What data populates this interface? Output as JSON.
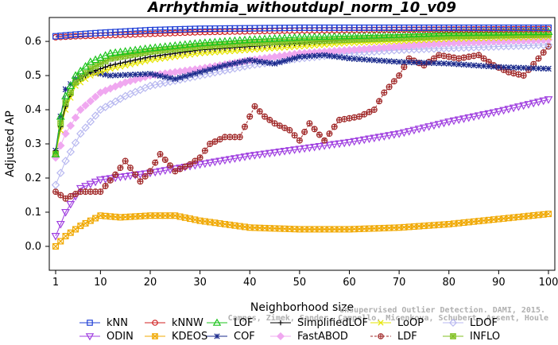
{
  "chart_data": {
    "type": "line",
    "title": "Arrhythmia_withoutdupl_norm_10_v09",
    "xlabel": "Neighborhood size",
    "ylabel": "Adjusted AP",
    "xlim": [
      1,
      100
    ],
    "ylim": [
      -0.07,
      0.67
    ],
    "xticks": [
      1,
      10,
      20,
      30,
      40,
      50,
      60,
      70,
      80,
      90,
      100
    ],
    "yticks": [
      0.0,
      0.1,
      0.2,
      0.3,
      0.4,
      0.5,
      0.6
    ],
    "ytick_labels": [
      "0.0",
      "0.1",
      "0.2",
      "0.3",
      "0.4",
      "0.5",
      "0.6"
    ],
    "legend_position": "bottom",
    "watermark": [
      "Unsupervised Outlier Detection. DAMI, 2015.",
      "Campos, Zimek, Sander, Campello, Micenkova, Schubert, Assent, Houle"
    ],
    "series": [
      {
        "name": "kNN",
        "color": "#1f3fd6",
        "marker": "square-open",
        "points": [
          [
            1,
            0.615
          ],
          [
            5,
            0.62
          ],
          [
            10,
            0.625
          ],
          [
            20,
            0.633
          ],
          [
            30,
            0.637
          ],
          [
            50,
            0.64
          ],
          [
            70,
            0.64
          ],
          [
            100,
            0.64
          ]
        ]
      },
      {
        "name": "kNNW",
        "color": "#d02020",
        "marker": "circle-open",
        "points": [
          [
            1,
            0.612
          ],
          [
            5,
            0.615
          ],
          [
            10,
            0.617
          ],
          [
            20,
            0.622
          ],
          [
            30,
            0.627
          ],
          [
            50,
            0.632
          ],
          [
            70,
            0.634
          ],
          [
            100,
            0.636
          ]
        ]
      },
      {
        "name": "LOF",
        "color": "#1ec41e",
        "marker": "triangle-open",
        "points": [
          [
            1,
            0.27
          ],
          [
            2,
            0.38
          ],
          [
            3,
            0.44
          ],
          [
            5,
            0.5
          ],
          [
            8,
            0.54
          ],
          [
            12,
            0.565
          ],
          [
            20,
            0.58
          ],
          [
            30,
            0.595
          ],
          [
            40,
            0.605
          ],
          [
            50,
            0.612
          ],
          [
            60,
            0.616
          ],
          [
            70,
            0.62
          ],
          [
            80,
            0.625
          ],
          [
            100,
            0.628
          ]
        ]
      },
      {
        "name": "SimplifiedLOF",
        "color": "#000000",
        "marker": "plus",
        "points": [
          [
            1,
            0.28
          ],
          [
            2,
            0.35
          ],
          [
            3,
            0.41
          ],
          [
            5,
            0.48
          ],
          [
            8,
            0.51
          ],
          [
            12,
            0.53
          ],
          [
            20,
            0.555
          ],
          [
            30,
            0.575
          ],
          [
            40,
            0.585
          ],
          [
            50,
            0.595
          ],
          [
            60,
            0.605
          ],
          [
            70,
            0.612
          ],
          [
            80,
            0.617
          ],
          [
            100,
            0.62
          ]
        ]
      },
      {
        "name": "LoOP",
        "color": "#e6e600",
        "marker": "x",
        "points": [
          [
            1,
            0.27
          ],
          [
            2,
            0.34
          ],
          [
            3,
            0.4
          ],
          [
            5,
            0.47
          ],
          [
            8,
            0.5
          ],
          [
            12,
            0.52
          ],
          [
            20,
            0.545
          ],
          [
            30,
            0.565
          ],
          [
            40,
            0.575
          ],
          [
            50,
            0.585
          ],
          [
            60,
            0.595
          ],
          [
            70,
            0.6
          ],
          [
            80,
            0.607
          ],
          [
            100,
            0.612
          ]
        ]
      },
      {
        "name": "LDOF",
        "color": "#b8b8f0",
        "marker": "diamond-open",
        "points": [
          [
            1,
            0.18
          ],
          [
            3,
            0.25
          ],
          [
            6,
            0.33
          ],
          [
            10,
            0.4
          ],
          [
            15,
            0.44
          ],
          [
            20,
            0.47
          ],
          [
            30,
            0.5
          ],
          [
            40,
            0.53
          ],
          [
            50,
            0.55
          ],
          [
            60,
            0.565
          ],
          [
            70,
            0.575
          ],
          [
            80,
            0.58
          ],
          [
            90,
            0.585
          ],
          [
            100,
            0.59
          ]
        ]
      },
      {
        "name": "ODIN",
        "color": "#a040e0",
        "marker": "triangle-down-open",
        "points": [
          [
            1,
            0.03
          ],
          [
            3,
            0.1
          ],
          [
            6,
            0.17
          ],
          [
            10,
            0.195
          ],
          [
            20,
            0.215
          ],
          [
            30,
            0.24
          ],
          [
            40,
            0.265
          ],
          [
            50,
            0.285
          ],
          [
            60,
            0.305
          ],
          [
            70,
            0.33
          ],
          [
            80,
            0.365
          ],
          [
            90,
            0.395
          ],
          [
            100,
            0.43
          ]
        ]
      },
      {
        "name": "KDEOS",
        "color": "#f0a800",
        "marker": "square-x",
        "points": [
          [
            1,
            0.0
          ],
          [
            3,
            0.03
          ],
          [
            6,
            0.06
          ],
          [
            10,
            0.09
          ],
          [
            14,
            0.085
          ],
          [
            20,
            0.09
          ],
          [
            25,
            0.09
          ],
          [
            30,
            0.075
          ],
          [
            40,
            0.055
          ],
          [
            50,
            0.05
          ],
          [
            60,
            0.05
          ],
          [
            70,
            0.055
          ],
          [
            80,
            0.065
          ],
          [
            90,
            0.08
          ],
          [
            100,
            0.095
          ]
        ]
      },
      {
        "name": "COF",
        "color": "#1a2a8c",
        "marker": "asterisk",
        "points": [
          [
            1,
            0.28
          ],
          [
            2,
            0.38
          ],
          [
            3,
            0.46
          ],
          [
            5,
            0.49
          ],
          [
            8,
            0.51
          ],
          [
            12,
            0.5
          ],
          [
            20,
            0.505
          ],
          [
            25,
            0.49
          ],
          [
            30,
            0.51
          ],
          [
            35,
            0.53
          ],
          [
            40,
            0.545
          ],
          [
            45,
            0.535
          ],
          [
            50,
            0.555
          ],
          [
            55,
            0.56
          ],
          [
            60,
            0.55
          ],
          [
            70,
            0.54
          ],
          [
            80,
            0.535
          ],
          [
            90,
            0.525
          ],
          [
            100,
            0.52
          ]
        ]
      },
      {
        "name": "FastABOD",
        "color": "#f0a8f0",
        "marker": "diamond-filled",
        "points": [
          [
            1,
            0.26
          ],
          [
            3,
            0.33
          ],
          [
            6,
            0.4
          ],
          [
            10,
            0.45
          ],
          [
            15,
            0.48
          ],
          [
            20,
            0.5
          ],
          [
            30,
            0.52
          ],
          [
            40,
            0.545
          ],
          [
            50,
            0.565
          ],
          [
            60,
            0.575
          ],
          [
            70,
            0.585
          ],
          [
            80,
            0.595
          ],
          [
            90,
            0.6
          ],
          [
            100,
            0.605
          ]
        ]
      },
      {
        "name": "LDF",
        "color": "#a02828",
        "marker": "circle-plus",
        "points": [
          [
            1,
            0.16
          ],
          [
            3,
            0.14
          ],
          [
            6,
            0.16
          ],
          [
            10,
            0.16
          ],
          [
            13,
            0.21
          ],
          [
            15,
            0.25
          ],
          [
            18,
            0.19
          ],
          [
            20,
            0.22
          ],
          [
            22,
            0.27
          ],
          [
            25,
            0.22
          ],
          [
            28,
            0.24
          ],
          [
            30,
            0.26
          ],
          [
            32,
            0.3
          ],
          [
            35,
            0.32
          ],
          [
            38,
            0.32
          ],
          [
            41,
            0.41
          ],
          [
            43,
            0.38
          ],
          [
            45,
            0.36
          ],
          [
            48,
            0.34
          ],
          [
            50,
            0.31
          ],
          [
            52,
            0.36
          ],
          [
            55,
            0.31
          ],
          [
            58,
            0.37
          ],
          [
            62,
            0.38
          ],
          [
            65,
            0.4
          ],
          [
            67,
            0.45
          ],
          [
            70,
            0.5
          ],
          [
            72,
            0.55
          ],
          [
            75,
            0.53
          ],
          [
            78,
            0.56
          ],
          [
            82,
            0.55
          ],
          [
            86,
            0.56
          ],
          [
            89,
            0.53
          ],
          [
            92,
            0.51
          ],
          [
            95,
            0.5
          ],
          [
            98,
            0.55
          ],
          [
            100,
            0.585
          ]
        ]
      },
      {
        "name": "INFLO",
        "color": "#80c020",
        "marker": "square-star",
        "points": [
          [
            1,
            0.27
          ],
          [
            2,
            0.36
          ],
          [
            3,
            0.42
          ],
          [
            5,
            0.48
          ],
          [
            8,
            0.52
          ],
          [
            12,
            0.55
          ],
          [
            20,
            0.57
          ],
          [
            30,
            0.585
          ],
          [
            40,
            0.595
          ],
          [
            50,
            0.6
          ],
          [
            60,
            0.605
          ],
          [
            70,
            0.61
          ],
          [
            80,
            0.615
          ],
          [
            100,
            0.62
          ]
        ]
      }
    ]
  }
}
